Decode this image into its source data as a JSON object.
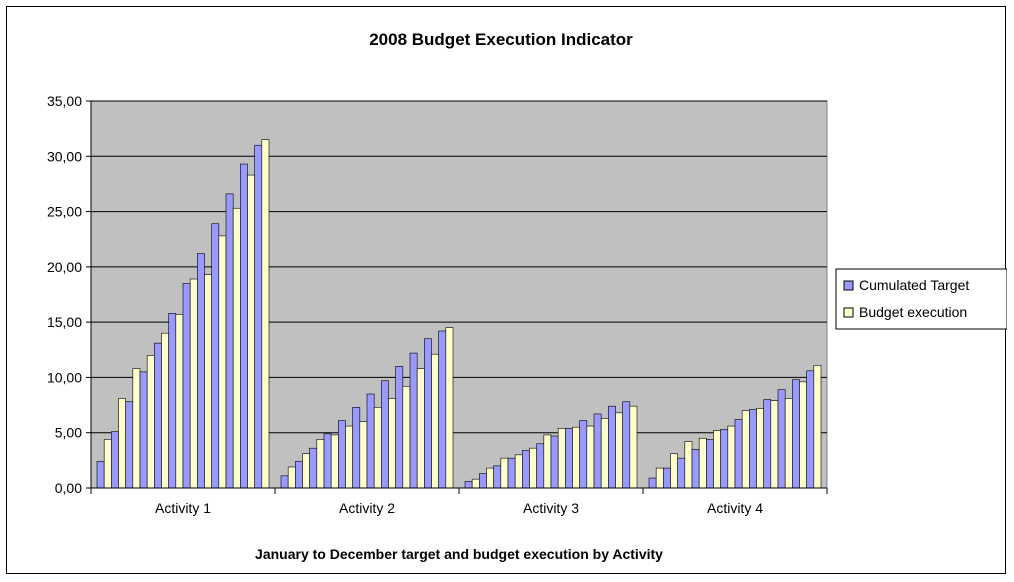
{
  "chart_data": {
    "type": "bar",
    "title": "2008 Budget Execution Indicator",
    "xlabel": "January to December target and budget execution by Activity",
    "ylabel": "",
    "ylim": [
      0,
      35
    ],
    "yticks": [
      "0,00",
      "5,00",
      "10,00",
      "15,00",
      "20,00",
      "25,00",
      "30,00",
      "35,00"
    ],
    "categories": [
      "Activity 1",
      "Activity 2",
      "Activity 3",
      "Activity 4"
    ],
    "months_per_category": 12,
    "grid": true,
    "legend_position": "right",
    "series": [
      {
        "name": "Cumulated Target",
        "color": "#9999ff",
        "values": [
          [
            2.4,
            5.1,
            7.8,
            10.5,
            13.1,
            15.8,
            18.5,
            21.2,
            23.9,
            26.6,
            29.3,
            31.0
          ],
          [
            1.1,
            2.4,
            3.6,
            4.9,
            6.1,
            7.3,
            8.5,
            9.7,
            11.0,
            12.2,
            13.5,
            14.2
          ],
          [
            0.6,
            1.3,
            2.0,
            2.7,
            3.4,
            4.0,
            4.7,
            5.4,
            6.1,
            6.7,
            7.4,
            7.8
          ],
          [
            0.9,
            1.8,
            2.7,
            3.5,
            4.4,
            5.3,
            6.2,
            7.1,
            8.0,
            8.9,
            9.8,
            10.6
          ]
        ]
      },
      {
        "name": "Budget execution",
        "color": "#ffffcc",
        "values": [
          [
            4.4,
            8.1,
            10.8,
            12.0,
            14.0,
            15.7,
            18.9,
            19.3,
            22.8,
            25.3,
            28.3,
            31.5
          ],
          [
            1.9,
            3.1,
            4.4,
            4.8,
            5.6,
            6.0,
            7.3,
            8.1,
            9.2,
            10.8,
            12.1,
            14.5
          ],
          [
            0.8,
            1.8,
            2.7,
            3.0,
            3.6,
            4.8,
            5.4,
            5.5,
            5.6,
            6.3,
            6.8,
            7.4
          ],
          [
            1.8,
            3.1,
            4.2,
            4.5,
            5.2,
            5.6,
            7.0,
            7.2,
            7.9,
            8.1,
            9.6,
            11.1
          ]
        ]
      }
    ]
  }
}
